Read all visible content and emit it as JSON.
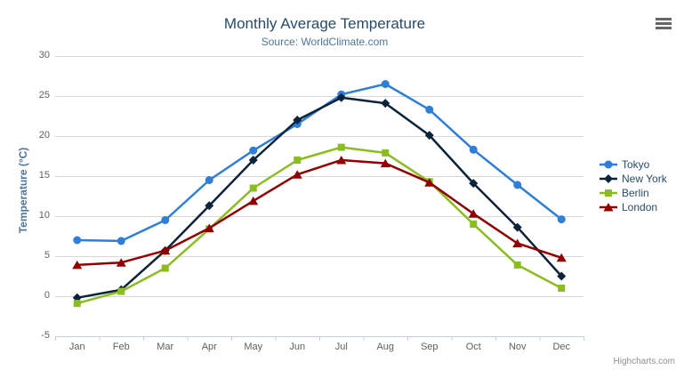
{
  "credit": "Highcharts.com",
  "colors": {
    "title": "#274b6d",
    "subtitle": "#4d759e",
    "axis_label": "#606060",
    "axis_title": "#4d759e",
    "grid": "#d8d8d8",
    "axis_line": "#c0d0e0",
    "legend_text": "#274b6d",
    "credit": "#909090",
    "menu_icon": "#666666",
    "background": "#ffffff"
  },
  "chart_data": {
    "type": "line",
    "title": "Monthly Average Temperature",
    "subtitle": "Source: WorldClimate.com",
    "xlabel": "",
    "ylabel": "Temperature (°C)",
    "ylim": [
      -5,
      30
    ],
    "ytick_step": 5,
    "grid": true,
    "legend_position": "right",
    "categories": [
      "Jan",
      "Feb",
      "Mar",
      "Apr",
      "May",
      "Jun",
      "Jul",
      "Aug",
      "Sep",
      "Oct",
      "Nov",
      "Dec"
    ],
    "series": [
      {
        "name": "Tokyo",
        "color": "#2f7ed8",
        "marker": "circle",
        "values": [
          7.0,
          6.9,
          9.5,
          14.5,
          18.2,
          21.5,
          25.2,
          26.5,
          23.3,
          18.3,
          13.9,
          9.6
        ]
      },
      {
        "name": "New York",
        "color": "#0d233a",
        "marker": "diamond",
        "values": [
          -0.2,
          0.8,
          5.7,
          11.3,
          17.0,
          22.0,
          24.8,
          24.1,
          20.1,
          14.1,
          8.6,
          2.5
        ]
      },
      {
        "name": "Berlin",
        "color": "#8bbc21",
        "marker": "square",
        "values": [
          -0.9,
          0.6,
          3.5,
          8.4,
          13.5,
          17.0,
          18.6,
          17.9,
          14.3,
          9.0,
          3.9,
          1.0
        ]
      },
      {
        "name": "London",
        "color": "#910000",
        "marker": "triangle",
        "values": [
          3.9,
          4.2,
          5.7,
          8.5,
          11.9,
          15.2,
          17.0,
          16.6,
          14.2,
          10.3,
          6.6,
          4.8
        ]
      }
    ]
  }
}
